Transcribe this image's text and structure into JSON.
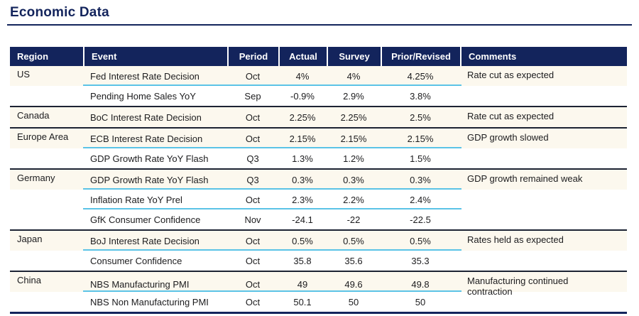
{
  "page": {
    "title": "Economic Data"
  },
  "colors": {
    "navy": "#13245c",
    "accent_underline": "#5bc3e6",
    "group_separator": "#1c2333",
    "first_row_tint": "#fcf8ee"
  },
  "table": {
    "columns": [
      "Region",
      "Event",
      "Period",
      "Actual",
      "Survey",
      "Prior/Revised",
      "Comments"
    ],
    "groups": [
      {
        "region": "US",
        "comment": "Rate cut as expected",
        "rows": [
          {
            "event": "Fed Interest Rate Decision",
            "period": "Oct",
            "actual": "4%",
            "survey": "4%",
            "prior": "4.25%"
          },
          {
            "event": "Pending Home Sales YoY",
            "period": "Sep",
            "actual": "-0.9%",
            "survey": "2.9%",
            "prior": "3.8%"
          }
        ]
      },
      {
        "region": "Canada",
        "comment": "Rate cut as expected",
        "rows": [
          {
            "event": "BoC Interest Rate Decision",
            "period": "Oct",
            "actual": "2.25%",
            "survey": "2.25%",
            "prior": "2.5%"
          }
        ]
      },
      {
        "region": "Europe Area",
        "comment": "GDP growth slowed",
        "rows": [
          {
            "event": "ECB Interest Rate Decision",
            "period": "Oct",
            "actual": "2.15%",
            "survey": "2.15%",
            "prior": "2.15%"
          },
          {
            "event": "GDP Growth Rate YoY Flash",
            "period": "Q3",
            "actual": "1.3%",
            "survey": "1.2%",
            "prior": "1.5%"
          }
        ]
      },
      {
        "region": "Germany",
        "comment": "GDP growth remained weak",
        "rows": [
          {
            "event": "GDP Growth Rate YoY Flash",
            "period": "Q3",
            "actual": "0.3%",
            "survey": "0.3%",
            "prior": "0.3%"
          },
          {
            "event": "Inflation Rate YoY Prel",
            "period": "Oct",
            "actual": "2.3%",
            "survey": "2.2%",
            "prior": "2.4%"
          },
          {
            "event": "GfK Consumer Confidence",
            "period": "Nov",
            "actual": "-24.1",
            "survey": "-22",
            "prior": "-22.5"
          }
        ]
      },
      {
        "region": "Japan",
        "comment": "Rates held as expected",
        "rows": [
          {
            "event": "BoJ Interest Rate Decision",
            "period": "Oct",
            "actual": "0.5%",
            "survey": "0.5%",
            "prior": "0.5%"
          },
          {
            "event": "Consumer Confidence",
            "period": "Oct",
            "actual": "35.8",
            "survey": "35.6",
            "prior": "35.3"
          }
        ]
      },
      {
        "region": "China",
        "comment": "Manufacturing continued contraction",
        "rows": [
          {
            "event": "NBS Manufacturing PMI",
            "period": "Oct",
            "actual": "49",
            "survey": "49.6",
            "prior": "49.8"
          },
          {
            "event": "NBS Non Manufacturing PMI",
            "period": "Oct",
            "actual": "50.1",
            "survey": "50",
            "prior": "50"
          }
        ]
      }
    ]
  }
}
